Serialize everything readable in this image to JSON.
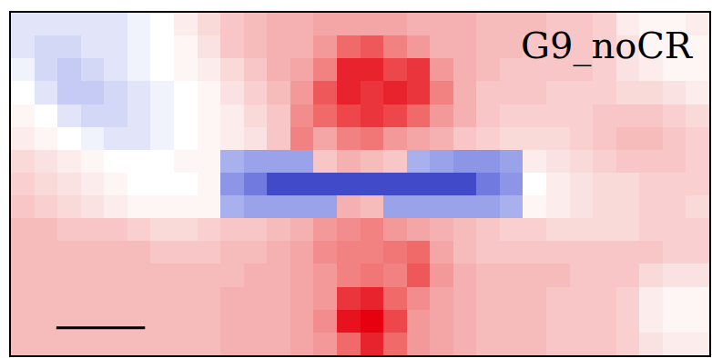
{
  "chart_data": {
    "type": "heatmap",
    "annotations": [
      {
        "text": "G9_noCR"
      }
    ],
    "tick_labels": false,
    "zlim": [
      -1,
      1
    ],
    "z": [
      [
        -0.1,
        -0.1,
        -0.1,
        -0.1,
        -0.1,
        -0.05,
        0,
        0.1,
        0.2,
        0.3,
        0.35,
        0.4,
        0.4,
        0.45,
        0.45,
        0.45,
        0.45,
        0.4,
        0.4,
        0.4,
        0.35,
        0.35,
        0.35,
        0.3,
        0.3,
        0.25,
        0.1,
        0.05,
        0.05,
        0.1
      ],
      [
        -0.1,
        -0.15,
        -0.15,
        -0.1,
        -0.1,
        -0.05,
        0,
        0.05,
        0.15,
        0.3,
        0.35,
        0.4,
        0.4,
        0.5,
        0.7,
        0.75,
        0.6,
        0.5,
        0.4,
        0.4,
        0.35,
        0.35,
        0.3,
        0.3,
        0.3,
        0.25,
        0.15,
        0.05,
        0.05,
        0.05
      ],
      [
        -0.05,
        -0.15,
        -0.2,
        -0.15,
        -0.1,
        -0.05,
        0,
        0.05,
        0.1,
        0.2,
        0.3,
        0.4,
        0.45,
        0.6,
        0.9,
        0.9,
        0.8,
        0.85,
        0.5,
        0.4,
        0.35,
        0.3,
        0.3,
        0.3,
        0.3,
        0.25,
        0.15,
        0.1,
        0.05,
        0.05
      ],
      [
        0,
        -0.1,
        -0.2,
        -0.2,
        -0.15,
        -0.1,
        -0.05,
        0,
        0.05,
        0.15,
        0.25,
        0.35,
        0.5,
        0.75,
        0.9,
        0.85,
        0.9,
        0.85,
        0.6,
        0.4,
        0.3,
        0.3,
        0.3,
        0.25,
        0.25,
        0.25,
        0.2,
        0.2,
        0.15,
        0.1
      ],
      [
        0.05,
        0,
        -0.1,
        -0.15,
        -0.15,
        -0.1,
        -0.05,
        0,
        0.05,
        0.1,
        0.2,
        0.3,
        0.55,
        0.7,
        0.8,
        0.85,
        0.8,
        0.7,
        0.5,
        0.4,
        0.3,
        0.25,
        0.25,
        0.25,
        0.25,
        0.3,
        0.3,
        0.3,
        0.25,
        0.2
      ],
      [
        0.1,
        0.05,
        0,
        -0.05,
        -0.1,
        -0.1,
        -0.05,
        0,
        0.05,
        0.1,
        0.15,
        0.3,
        0.6,
        0.45,
        0.6,
        0.65,
        0.5,
        0.45,
        0.4,
        0.3,
        0.25,
        0.2,
        0.2,
        0.2,
        0.25,
        0.3,
        0.35,
        0.35,
        0.3,
        0.25
      ],
      [
        0.2,
        0.15,
        0.1,
        0.05,
        0,
        0,
        0,
        0.05,
        0.05,
        -0.3,
        -0.35,
        -0.35,
        -0.35,
        0.3,
        0.4,
        0.35,
        0.3,
        -0.3,
        -0.35,
        -0.4,
        -0.4,
        -0.35,
        0.1,
        0.15,
        0.2,
        0.25,
        0.3,
        0.3,
        0.3,
        0.25
      ],
      [
        0.25,
        0.2,
        0.15,
        0.1,
        0.05,
        0,
        0,
        0,
        0.05,
        -0.4,
        -0.5,
        -0.7,
        -0.7,
        -0.7,
        -0.7,
        -0.7,
        -0.7,
        -0.7,
        -0.7,
        -0.7,
        -0.5,
        -0.4,
        0,
        0.1,
        0.15,
        0.2,
        0.2,
        0.25,
        0.25,
        0.25
      ],
      [
        0.3,
        0.25,
        0.2,
        0.15,
        0.1,
        0.05,
        0.05,
        0.05,
        0.05,
        -0.3,
        -0.35,
        -0.35,
        -0.35,
        -0.35,
        0.4,
        0.35,
        -0.35,
        -0.35,
        -0.35,
        -0.35,
        -0.35,
        -0.3,
        0.05,
        0.1,
        0.15,
        0.2,
        0.2,
        0.25,
        0.25,
        0.2
      ],
      [
        0.35,
        0.35,
        0.3,
        0.3,
        0.3,
        0.25,
        0.2,
        0.2,
        0.25,
        0.3,
        0.3,
        0.35,
        0.4,
        0.5,
        0.55,
        0.6,
        0.5,
        0.45,
        0.4,
        0.35,
        0.3,
        0.25,
        0.25,
        0.2,
        0.2,
        0.2,
        0.2,
        0.25,
        0.25,
        0.25
      ],
      [
        0.35,
        0.35,
        0.35,
        0.35,
        0.35,
        0.35,
        0.3,
        0.3,
        0.3,
        0.35,
        0.35,
        0.4,
        0.45,
        0.55,
        0.6,
        0.6,
        0.65,
        0.7,
        0.45,
        0.35,
        0.3,
        0.3,
        0.3,
        0.3,
        0.3,
        0.3,
        0.3,
        0.3,
        0.25,
        0.25
      ],
      [
        0.35,
        0.35,
        0.35,
        0.35,
        0.35,
        0.35,
        0.35,
        0.35,
        0.35,
        0.35,
        0.4,
        0.4,
        0.45,
        0.5,
        0.6,
        0.65,
        0.6,
        0.75,
        0.5,
        0.4,
        0.35,
        0.35,
        0.35,
        0.35,
        0.3,
        0.3,
        0.3,
        0.2,
        0.15,
        0.15
      ],
      [
        0.35,
        0.35,
        0.35,
        0.35,
        0.35,
        0.35,
        0.35,
        0.35,
        0.35,
        0.4,
        0.4,
        0.4,
        0.45,
        0.5,
        0.85,
        0.9,
        0.7,
        0.55,
        0.45,
        0.4,
        0.35,
        0.35,
        0.35,
        0.3,
        0.3,
        0.3,
        0.25,
        0.1,
        0.05,
        0.05
      ],
      [
        0.35,
        0.35,
        0.35,
        0.35,
        0.35,
        0.35,
        0.35,
        0.35,
        0.35,
        0.4,
        0.4,
        0.4,
        0.45,
        0.55,
        0.95,
        1,
        0.8,
        0.5,
        0.45,
        0.4,
        0.35,
        0.35,
        0.35,
        0.3,
        0.3,
        0.3,
        0.25,
        0.1,
        0.05,
        0.05
      ],
      [
        0.35,
        0.35,
        0.35,
        0.35,
        0.35,
        0.35,
        0.35,
        0.35,
        0.35,
        0.4,
        0.4,
        0.4,
        0.45,
        0.5,
        0.7,
        0.9,
        0.7,
        0.5,
        0.45,
        0.4,
        0.35,
        0.35,
        0.35,
        0.3,
        0.3,
        0.3,
        0.25,
        0.15,
        0.1,
        0.1
      ]
    ]
  }
}
